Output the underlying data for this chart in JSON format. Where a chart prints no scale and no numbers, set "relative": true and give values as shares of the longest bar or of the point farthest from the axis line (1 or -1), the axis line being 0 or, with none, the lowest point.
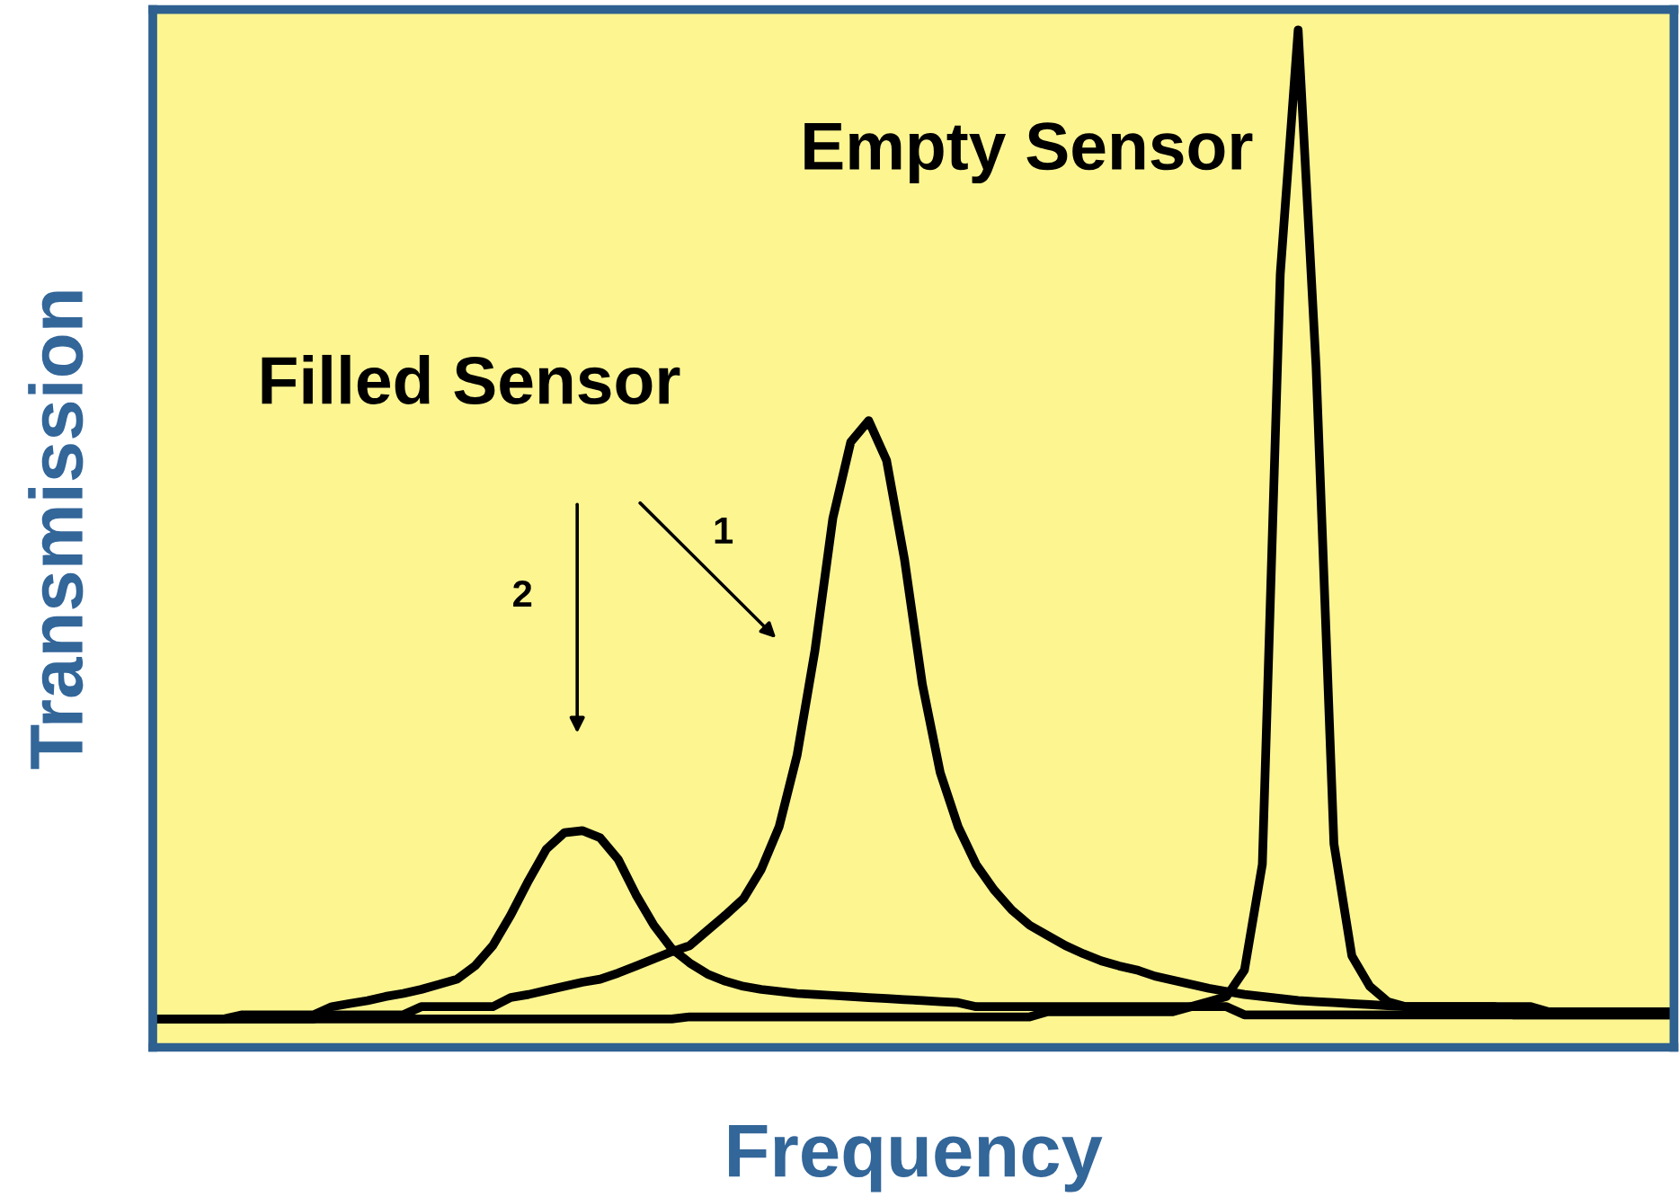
{
  "chart_data": {
    "type": "line",
    "relative": true,
    "xlabel": "Frequency",
    "ylabel": "Transmission",
    "legend": false,
    "marker": "none",
    "line_style": "solid",
    "annotations": [
      "Filled Sensor",
      "1",
      "2"
    ],
    "categories": [
      null,
      null,
      null,
      null,
      null,
      null,
      null,
      null,
      null,
      null,
      null,
      null,
      null,
      null,
      null,
      null,
      null,
      null,
      null,
      null,
      null,
      null,
      null,
      null,
      null,
      null,
      null,
      null,
      null,
      null,
      null,
      null,
      null,
      null,
      null,
      null,
      null,
      null,
      null,
      null,
      null,
      null,
      null,
      null,
      null,
      null,
      null,
      null,
      null,
      null,
      null,
      null,
      null,
      null,
      null,
      null,
      null,
      null,
      null,
      null,
      null,
      null,
      null,
      null,
      null,
      null,
      null,
      null,
      null,
      null,
      null,
      null,
      null,
      null,
      null,
      null,
      null,
      null,
      null,
      null,
      null,
      null,
      null,
      null,
      null,
      null
    ],
    "series": [
      {
        "name": "Empty Sensor",
        "color": "#000000",
        "values": [
          0.028,
          0.028,
          0.028,
          0.028,
          0.028,
          0.028,
          0.028,
          0.028,
          0.028,
          0.028,
          0.028,
          0.028,
          0.028,
          0.028,
          0.028,
          0.028,
          0.028,
          0.028,
          0.028,
          0.028,
          0.028,
          0.028,
          0.028,
          0.028,
          0.028,
          0.028,
          0.028,
          0.028,
          0.028,
          0.028,
          0.03,
          0.03,
          0.03,
          0.03,
          0.03,
          0.03,
          0.03,
          0.03,
          0.03,
          0.03,
          0.03,
          0.03,
          0.03,
          0.03,
          0.03,
          0.03,
          0.03,
          0.03,
          0.03,
          0.03,
          0.035,
          0.035,
          0.035,
          0.035,
          0.035,
          0.035,
          0.035,
          0.035,
          0.04,
          0.045,
          0.05,
          0.076,
          0.18,
          0.76,
          1.0,
          0.67,
          0.2,
          0.09,
          0.06,
          0.045,
          0.04,
          0.04,
          0.04,
          0.04,
          0.04,
          0.04,
          0.032,
          0.032,
          0.032,
          0.032,
          0.032,
          0.032,
          0.032,
          0.032,
          0.032,
          0.032
        ]
      },
      {
        "color": "#000000",
        "values": [
          0.028,
          0.028,
          0.028,
          0.028,
          0.028,
          0.028,
          0.028,
          0.028,
          0.028,
          0.028,
          0.032,
          0.032,
          0.032,
          0.032,
          0.032,
          0.04,
          0.04,
          0.04,
          0.04,
          0.04,
          0.049,
          0.052,
          0.056,
          0.06,
          0.064,
          0.067,
          0.073,
          0.08,
          0.087,
          0.094,
          0.1,
          0.115,
          0.13,
          0.146,
          0.175,
          0.217,
          0.287,
          0.39,
          0.52,
          0.595,
          0.616,
          0.577,
          0.48,
          0.357,
          0.27,
          0.217,
          0.18,
          0.155,
          0.135,
          0.12,
          0.11,
          0.1,
          0.092,
          0.085,
          0.08,
          0.076,
          0.07,
          0.066,
          0.062,
          0.058,
          0.055,
          0.052,
          0.05,
          0.048,
          0.046,
          0.045,
          0.044,
          0.043,
          0.042,
          0.041,
          0.04,
          0.04,
          0.04,
          0.04,
          0.04,
          0.04,
          0.04,
          0.04,
          0.035,
          0.035,
          0.035,
          0.035,
          0.035,
          0.035,
          0.035,
          0.035
        ]
      },
      {
        "color": "#000000",
        "values": [
          0.028,
          0.028,
          0.028,
          0.028,
          0.028,
          0.032,
          0.032,
          0.032,
          0.032,
          0.032,
          0.04,
          0.043,
          0.046,
          0.05,
          0.053,
          0.057,
          0.062,
          0.067,
          0.08,
          0.1,
          0.13,
          0.164,
          0.195,
          0.211,
          0.213,
          0.206,
          0.185,
          0.15,
          0.12,
          0.097,
          0.083,
          0.072,
          0.065,
          0.06,
          0.057,
          0.055,
          0.053,
          0.052,
          0.051,
          0.05,
          0.049,
          0.048,
          0.047,
          0.046,
          0.045,
          0.044,
          0.04,
          0.04,
          0.04,
          0.04,
          0.04,
          0.04,
          0.04,
          0.04,
          0.04,
          0.04,
          0.04,
          0.04,
          0.04,
          0.04,
          0.04,
          0.032,
          0.032,
          0.032,
          0.032,
          0.032,
          0.032,
          0.032,
          0.032,
          0.032,
          0.032,
          0.032,
          0.032,
          0.032,
          0.032,
          0.032,
          0.032,
          0.032,
          0.032,
          0.032,
          0.032,
          0.032,
          0.032,
          0.032,
          0.032,
          0.032
        ]
      }
    ]
  }
}
